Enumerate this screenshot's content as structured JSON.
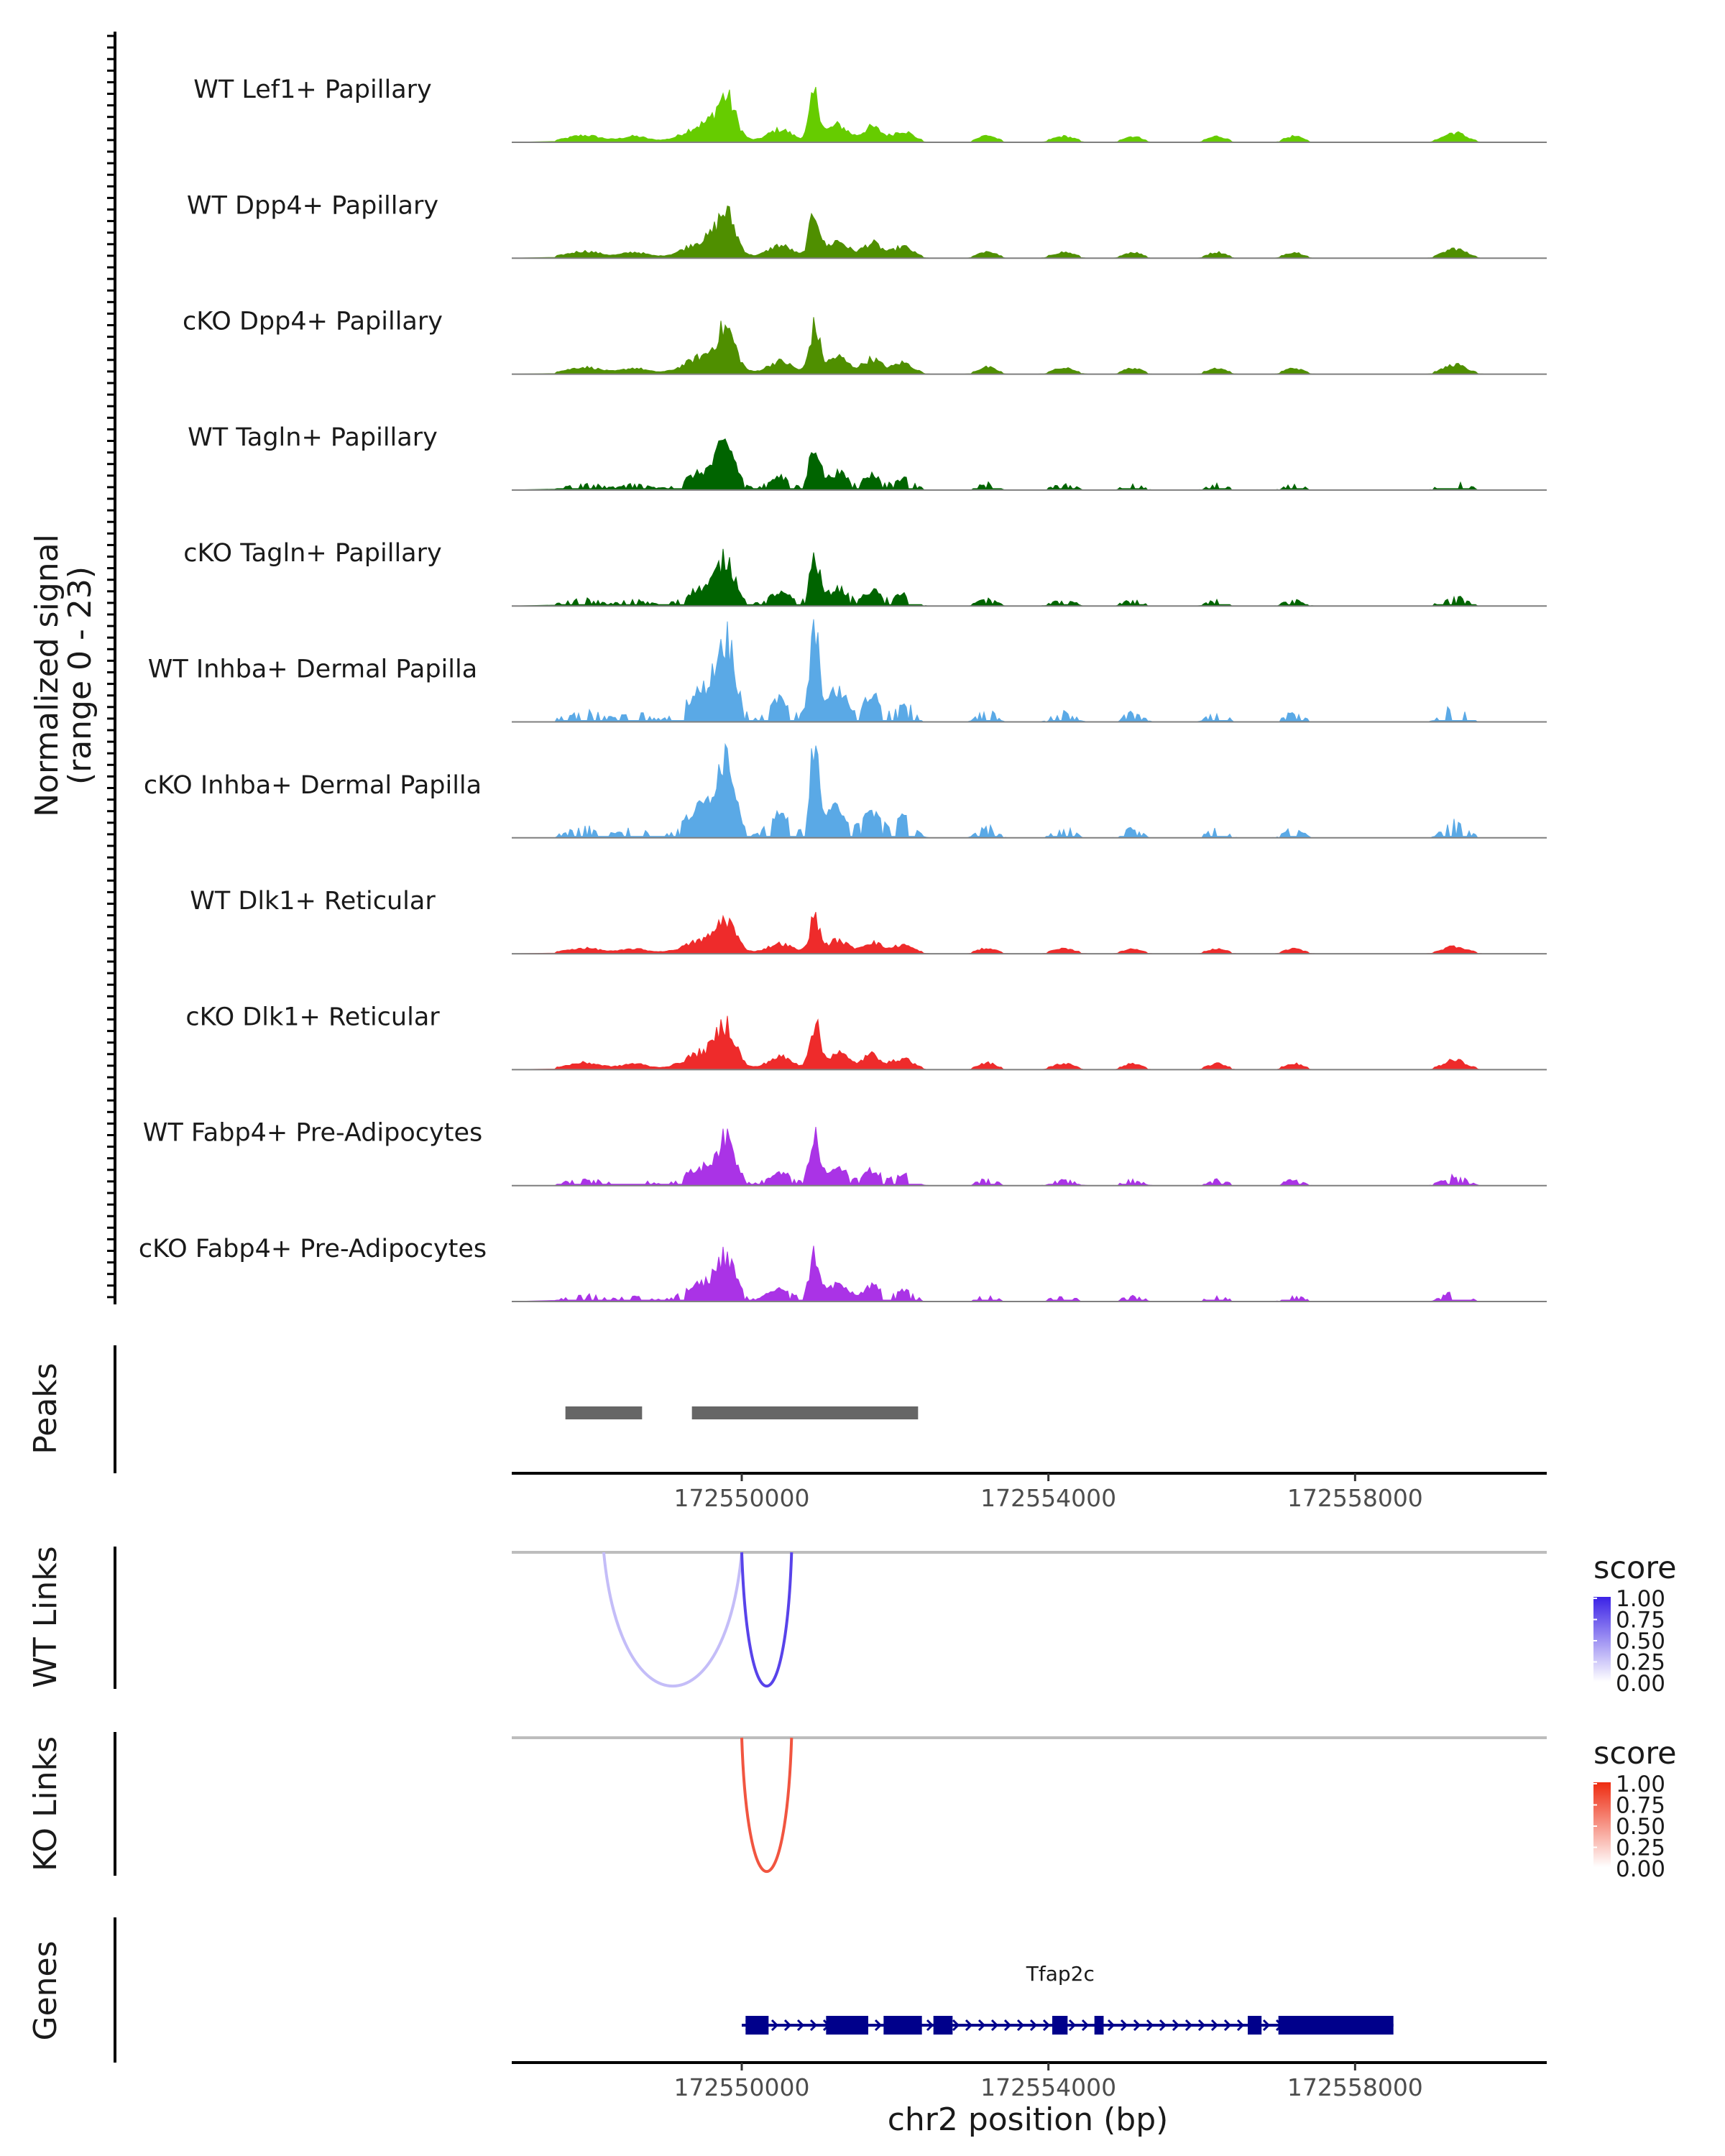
{
  "chart_data": {
    "type": "area",
    "title": "",
    "region": {
      "chrom": "chr2",
      "start": 172547000,
      "end": 172560500
    },
    "coverage": {
      "ylabel": "Normalized signal",
      "ylabel_range": "(range 0 - 23)",
      "ylim": [
        0,
        23
      ],
      "tracks": [
        {
          "name": "WT Lef1+ Papillary",
          "color": "#66cc00"
        },
        {
          "name": "WT Dpp4+ Papillary",
          "color": "#4f8f00"
        },
        {
          "name": "cKO Dpp4+ Papillary",
          "color": "#4f8f00"
        },
        {
          "name": "WT Tagln+ Papillary",
          "color": "#006400"
        },
        {
          "name": "cKO Tagln+ Papillary",
          "color": "#006400"
        },
        {
          "name": "WT Inhba+ Dermal Papilla",
          "color": "#5aa9e6"
        },
        {
          "name": "cKO Inhba+ Dermal Papilla",
          "color": "#5aa9e6"
        },
        {
          "name": "WT Dlk1+ Reticular",
          "color": "#ee2b2b"
        },
        {
          "name": "cKO Dlk1+ Reticular",
          "color": "#ee2b2b"
        },
        {
          "name": "WT Fabp4+ Pre-Adipocytes",
          "color": "#aa33e6"
        },
        {
          "name": "cKO Fabp4+ Pre-Adipocytes",
          "color": "#aa33e6"
        }
      ]
    },
    "peaks": {
      "label": "Peaks",
      "regions": [
        [
          172547700,
          172548700
        ],
        [
          172549350,
          172552300
        ]
      ],
      "color": "#666666"
    },
    "peaks_axis_ticks": [
      "172550000",
      "172554000",
      "172558000"
    ],
    "peaks_axis_tick_values": [
      172550000,
      172554000,
      172558000
    ],
    "links": [
      {
        "label": "WT Links",
        "legend_title": "score",
        "legend_ticks": [
          "1.00",
          "0.75",
          "0.50",
          "0.25",
          "0.00"
        ],
        "color_high": "#3b22e6",
        "color_low": "#ffffff",
        "arcs": [
          {
            "start": 172548200,
            "end": 172550000,
            "score": 0.3
          },
          {
            "start": 172550000,
            "end": 172550650,
            "score": 0.85
          }
        ]
      },
      {
        "label": "KO Links",
        "legend_title": "score",
        "legend_ticks": [
          "1.00",
          "0.75",
          "0.50",
          "0.25",
          "0.00"
        ],
        "color_high": "#ee2b10",
        "color_low": "#ffffff",
        "arcs": [
          {
            "start": 172550000,
            "end": 172550650,
            "score": 0.8
          }
        ]
      }
    ],
    "genes": {
      "label": "Genes",
      "gene_name": "Tfap2c",
      "color": "#00008b",
      "span": [
        172550000,
        172558500
      ],
      "strand": "+",
      "exons": [
        [
          172550050,
          172550350
        ],
        [
          172551100,
          172551650
        ],
        [
          172551850,
          172552350
        ],
        [
          172552500,
          172552750
        ],
        [
          172554050,
          172554250
        ],
        [
          172554600,
          172554720
        ],
        [
          172556600,
          172556780
        ],
        [
          172557000,
          172558500
        ]
      ]
    },
    "xlabel": "chr2 position (bp)",
    "x_ticks": [
      "172550000",
      "172554000",
      "172558000"
    ],
    "x_tick_values": [
      172550000,
      172554000,
      172558000
    ]
  }
}
